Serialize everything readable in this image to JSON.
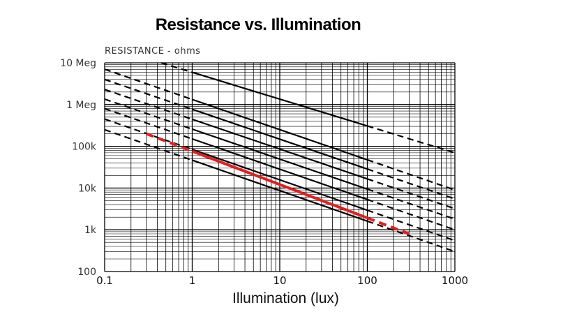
{
  "chart_data": {
    "type": "line",
    "title": "Resistance vs. Illumination",
    "ylabel": "RESISTANCE - ohms",
    "xlabel": "Illumination (lux)",
    "xscale": "log",
    "yscale": "log",
    "xlim": [
      0.1,
      1000
    ],
    "ylim": [
      100,
      10000000
    ],
    "grid": true,
    "x_tick_labels": [
      "0.1",
      "1",
      "10",
      "100",
      "1000"
    ],
    "y_tick_labels": [
      "10 Meg",
      "1 Meg",
      "100k",
      "10k",
      "1k",
      "100"
    ],
    "solid_range_lux": [
      1,
      100
    ],
    "highlight_color": "#e02020",
    "line_color": "#000000",
    "series": [
      {
        "x": [
          0.1,
          1000
        ],
        "y": [
          26000000,
          70000
        ],
        "highlight": false
      },
      {
        "x": [
          0.1,
          1000
        ],
        "y": [
          7000000,
          9000
        ],
        "highlight": false
      },
      {
        "x": [
          0.1,
          1000
        ],
        "y": [
          4000000,
          5500
        ],
        "highlight": false
      },
      {
        "x": [
          0.1,
          1000
        ],
        "y": [
          2300000,
          3200
        ],
        "highlight": false
      },
      {
        "x": [
          0.1,
          1000
        ],
        "y": [
          1350000,
          1800
        ],
        "highlight": false
      },
      {
        "x": [
          0.1,
          1000
        ],
        "y": [
          800000,
          1000
        ],
        "highlight": false
      },
      {
        "x": [
          0.1,
          1000
        ],
        "y": [
          450000,
          550
        ],
        "highlight": false
      },
      {
        "x": [
          0.1,
          1000
        ],
        "y": [
          250000,
          300
        ],
        "highlight": false
      },
      {
        "x": [
          0.3,
          300
        ],
        "y": [
          200000,
          800
        ],
        "highlight": true
      }
    ]
  }
}
